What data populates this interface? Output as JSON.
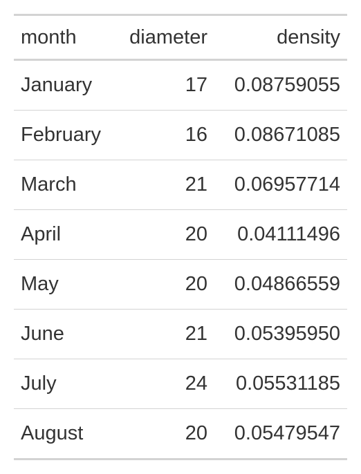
{
  "table": {
    "columns": [
      "month",
      "diameter",
      "density"
    ],
    "rows": [
      [
        "January",
        "17",
        "0.08759055"
      ],
      [
        "February",
        "16",
        "0.08671085"
      ],
      [
        "March",
        "21",
        "0.06957714"
      ],
      [
        "April",
        "20",
        "0.04111496"
      ],
      [
        "May",
        "20",
        "0.04866559"
      ],
      [
        "June",
        "21",
        "0.05395950"
      ],
      [
        "July",
        "24",
        "0.05531185"
      ],
      [
        "August",
        "20",
        "0.05479547"
      ]
    ]
  },
  "colors": {
    "text": "#333333",
    "rule": "#d3d3d3",
    "background": "#ffffff"
  }
}
